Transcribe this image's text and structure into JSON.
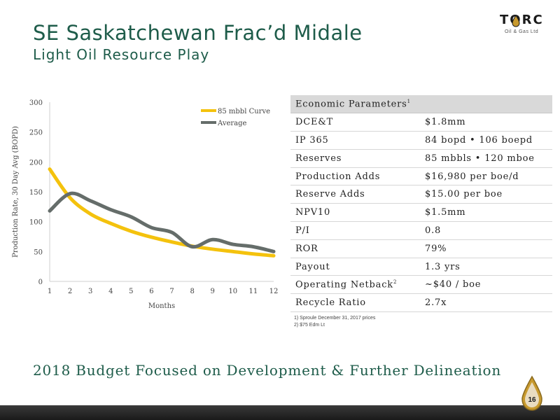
{
  "slide": {
    "title": "SE Saskatchewan Frac’d Midale",
    "subtitle": "Light Oil Resource Play",
    "banner": "2018 Budget Focused on Development & Further Delineation",
    "page_number": "16"
  },
  "logo": {
    "name": "TORC",
    "subtext": "Oil & Gas Ltd"
  },
  "colors": {
    "accent": "#1e5c4a",
    "curve": "#f4c20d",
    "average": "#656d6a"
  },
  "table": {
    "header": "Economic Parameters",
    "header_sup": "1",
    "rows": [
      {
        "label": "DCE&T",
        "value": "$1.8mm"
      },
      {
        "label": "IP 365",
        "value": "84 bopd  •  106 boepd"
      },
      {
        "label": "Reserves",
        "value": "85 mbbls • 120 mboe"
      },
      {
        "label": "Production Adds",
        "value": "$16,980 per boe/d"
      },
      {
        "label": "Reserve Adds",
        "value": "$15.00 per boe"
      },
      {
        "label": "NPV10",
        "value": "$1.5mm"
      },
      {
        "label": "P/I",
        "value": "0.8"
      },
      {
        "label": "ROR",
        "value": "79%"
      },
      {
        "label": "Payout",
        "value": "1.3 yrs"
      },
      {
        "label": "Operating Netback",
        "label_sup": "2",
        "value": "~$40 / boe"
      },
      {
        "label": "Recycle Ratio",
        "value": "2.7x"
      }
    ]
  },
  "footnotes": [
    "1)    Sproule December 31, 2017 prices",
    "2)    $75 Edm Lt"
  ],
  "chart_data": {
    "type": "line",
    "x": [
      1,
      2,
      3,
      4,
      5,
      6,
      7,
      8,
      9,
      10,
      11,
      12
    ],
    "xlabel": "Months",
    "ylabel": "Production Rate, 30 Day Avg (BOPD)",
    "ylim": [
      0,
      300
    ],
    "yticks": [
      0,
      50,
      100,
      150,
      200,
      250,
      300
    ],
    "grid": false,
    "legend": "top-right",
    "series": [
      {
        "name": "85 mbbl Curve",
        "color": "#f4c20d",
        "values": [
          188,
          140,
          113,
          97,
          84,
          74,
          66,
          59,
          54,
          50,
          46,
          43
        ]
      },
      {
        "name": "Average",
        "color": "#656d6a",
        "values": [
          118,
          147,
          135,
          120,
          108,
          90,
          82,
          58,
          70,
          62,
          58,
          50
        ]
      }
    ]
  }
}
